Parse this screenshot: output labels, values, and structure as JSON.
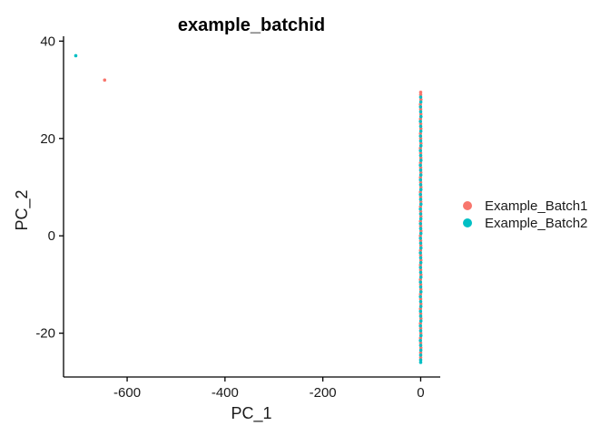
{
  "chart_data": {
    "type": "scatter",
    "title": "example_batchid",
    "xlabel": "PC_1",
    "ylabel": "PC_2",
    "xlim": [
      -730,
      40
    ],
    "ylim": [
      -29,
      41
    ],
    "x_ticks": [
      -600,
      -400,
      -200,
      0
    ],
    "y_ticks": [
      -20,
      0,
      20,
      40
    ],
    "grid": false,
    "legend_position": "right",
    "series": [
      {
        "name": "Example_Batch1",
        "color": "#F8766D",
        "points": [
          [
            -646,
            32
          ],
          [
            0,
            29.5
          ],
          [
            0,
            29
          ],
          [
            0.5,
            28
          ],
          [
            -0.5,
            27
          ],
          [
            0,
            26
          ],
          [
            0.3,
            25
          ],
          [
            -0.3,
            24
          ],
          [
            0,
            23
          ],
          [
            0.4,
            22
          ],
          [
            -0.4,
            21
          ],
          [
            0,
            20
          ],
          [
            0.5,
            19
          ],
          [
            -0.5,
            18
          ],
          [
            0,
            17
          ],
          [
            0.3,
            16
          ],
          [
            -0.3,
            15
          ],
          [
            0,
            14
          ],
          [
            0.4,
            13
          ],
          [
            -0.4,
            12
          ],
          [
            0,
            11
          ],
          [
            0.5,
            10
          ],
          [
            -0.5,
            9
          ],
          [
            0,
            8
          ],
          [
            0.3,
            7
          ],
          [
            -0.3,
            6
          ],
          [
            0,
            5
          ],
          [
            0.4,
            4
          ],
          [
            -0.4,
            3
          ],
          [
            0,
            2
          ],
          [
            0.5,
            1
          ],
          [
            -0.5,
            0
          ],
          [
            0,
            -1
          ],
          [
            0.3,
            -2
          ],
          [
            -0.3,
            -3
          ],
          [
            0,
            -4
          ],
          [
            0.4,
            -5
          ],
          [
            -0.4,
            -6
          ],
          [
            0,
            -7
          ],
          [
            0.5,
            -8
          ],
          [
            -0.5,
            -9
          ],
          [
            0,
            -10
          ],
          [
            0.3,
            -11
          ],
          [
            -0.3,
            -12
          ],
          [
            0,
            -13
          ],
          [
            0.4,
            -14
          ],
          [
            -0.4,
            -15
          ],
          [
            0,
            -16
          ],
          [
            0.5,
            -17
          ],
          [
            -0.5,
            -18
          ],
          [
            0,
            -19
          ],
          [
            0.3,
            -20
          ],
          [
            -0.3,
            -21
          ],
          [
            0,
            -22
          ],
          [
            0.4,
            -23
          ],
          [
            0,
            -24
          ],
          [
            0,
            -25
          ]
        ]
      },
      {
        "name": "Example_Batch2",
        "color": "#00BFC4",
        "points": [
          [
            -705,
            37
          ],
          [
            0,
            28.5
          ],
          [
            0.3,
            27.5
          ],
          [
            -0.3,
            26.5
          ],
          [
            0,
            25.5
          ],
          [
            0.5,
            24.5
          ],
          [
            -0.5,
            23.5
          ],
          [
            0,
            22.5
          ],
          [
            0.3,
            21.5
          ],
          [
            -0.3,
            20.5
          ],
          [
            0,
            19.5
          ],
          [
            0.4,
            18.5
          ],
          [
            -0.4,
            17.5
          ],
          [
            0,
            16.5
          ],
          [
            0.5,
            15.5
          ],
          [
            -0.5,
            14.5
          ],
          [
            0,
            13.5
          ],
          [
            0.3,
            12.5
          ],
          [
            -0.3,
            11.5
          ],
          [
            0,
            10.5
          ],
          [
            0.4,
            9.5
          ],
          [
            -0.4,
            8.5
          ],
          [
            0,
            7.5
          ],
          [
            0.5,
            6.5
          ],
          [
            -0.5,
            5.5
          ],
          [
            0,
            4.5
          ],
          [
            0.3,
            3.5
          ],
          [
            -0.3,
            2.5
          ],
          [
            0,
            1.5
          ],
          [
            0.4,
            0.5
          ],
          [
            -0.4,
            -0.5
          ],
          [
            0,
            -1.5
          ],
          [
            0.5,
            -2.5
          ],
          [
            -0.5,
            -3.5
          ],
          [
            0,
            -4.5
          ],
          [
            0.3,
            -5.5
          ],
          [
            -0.3,
            -6.5
          ],
          [
            0,
            -7.5
          ],
          [
            0.4,
            -8.5
          ],
          [
            -0.4,
            -9.5
          ],
          [
            0,
            -10.5
          ],
          [
            0.5,
            -11.5
          ],
          [
            -0.5,
            -12.5
          ],
          [
            0,
            -13.5
          ],
          [
            0.3,
            -14.5
          ],
          [
            -0.3,
            -15.5
          ],
          [
            0,
            -16.5
          ],
          [
            0.4,
            -17.5
          ],
          [
            -0.4,
            -18.5
          ],
          [
            0,
            -19.5
          ],
          [
            0.5,
            -20.5
          ],
          [
            -0.5,
            -21.5
          ],
          [
            0,
            -22.5
          ],
          [
            0.3,
            -23.5
          ],
          [
            0,
            -24.5
          ],
          [
            0,
            -25.5
          ],
          [
            0,
            -26
          ]
        ]
      }
    ]
  }
}
